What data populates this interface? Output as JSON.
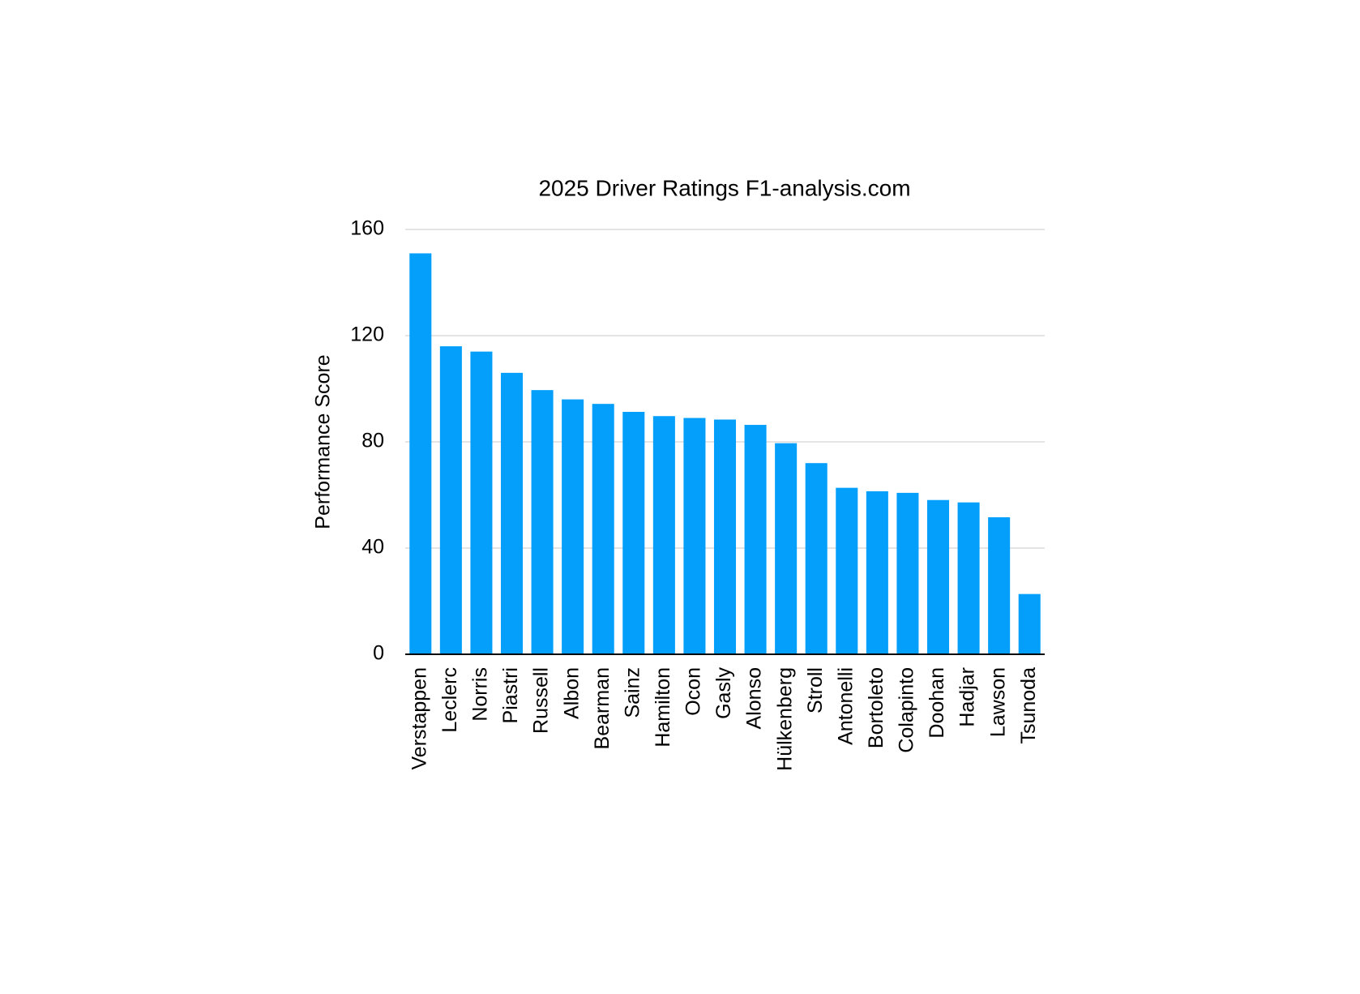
{
  "chart_data": {
    "type": "bar",
    "title": "2025 Driver Ratings F1-analysis.com",
    "y_label": "Performance Score",
    "categories": [
      "Verstappen",
      "Leclerc",
      "Norris",
      "Piastri",
      "Russell",
      "Albon",
      "Bearman",
      "Sainz",
      "Hamilton",
      "Ocon",
      "Gasly",
      "Alonso",
      "Hülkenberg",
      "Stroll",
      "Antonelli",
      "Bortoleto",
      "Colapinto",
      "Doohan",
      "Hadjar",
      "Lawson",
      "Tsunoda"
    ],
    "values": [
      151,
      116,
      114,
      106,
      99.5,
      96,
      94.3,
      91.3,
      89.7,
      89,
      88.4,
      86.4,
      79.5,
      72,
      62.7,
      61.4,
      60.8,
      58.1,
      57.2,
      51.6,
      22.7
    ],
    "color": "#049ffb",
    "ylim": [
      0,
      160
    ],
    "yticks": [
      0,
      40,
      80,
      120,
      160
    ],
    "grid": true
  }
}
